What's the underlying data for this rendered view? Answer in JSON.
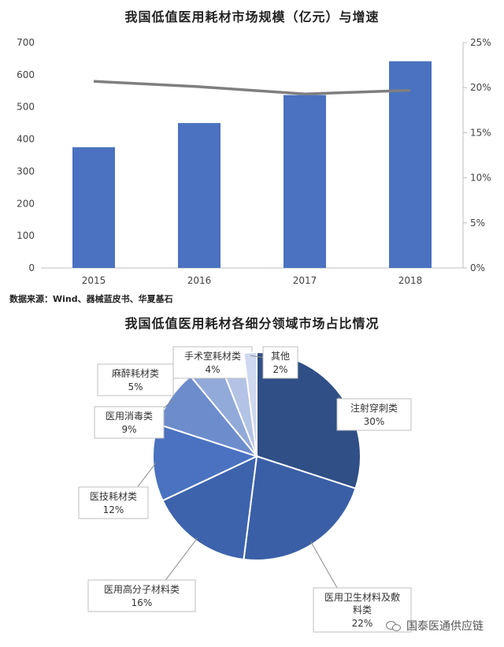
{
  "charts": {
    "bar_title": "我国低值医用耗材市场规模（亿元）与增速",
    "source_note": "数据来源：Wind、器械蓝皮书、华夏基石",
    "pie_title": "我国低值医用耗材各细分领域市场占比情况"
  },
  "chart_data": [
    {
      "type": "bar",
      "categories": [
        "2015",
        "2016",
        "2017",
        "2018"
      ],
      "series": [
        {
          "type": "bar",
          "values": [
            375,
            450,
            537,
            642
          ],
          "axis": "left",
          "color": "#4a72c0"
        },
        {
          "type": "line",
          "values": [
            20.7,
            20.1,
            19.3,
            19.7
          ],
          "axis": "right",
          "color": "#7f7f7f"
        }
      ],
      "ylim": [
        0,
        700
      ],
      "yticks": [
        "0",
        "100",
        "200",
        "300",
        "400",
        "500",
        "600",
        "700"
      ],
      "y2lim": [
        0,
        25
      ],
      "y2ticks": [
        "0%",
        "5%",
        "10%",
        "15%",
        "20%",
        "25%"
      ],
      "grid": false
    },
    {
      "type": "pie",
      "slices": [
        {
          "label": "注射穿刺类",
          "pct_label": "30%",
          "value": 30,
          "color": "#2f4f86"
        },
        {
          "label": "医用卫生材料及敷料类",
          "pct_label": "22%",
          "value": 22,
          "color": "#3a5fa6"
        },
        {
          "label": "医用高分子材料类",
          "pct_label": "16%",
          "value": 16,
          "color": "#3d63ad"
        },
        {
          "label": "医技耗材类",
          "pct_label": "12%",
          "value": 12,
          "color": "#4a72c0"
        },
        {
          "label": "医用消毒类",
          "pct_label": "9%",
          "value": 9,
          "color": "#6d8ccc"
        },
        {
          "label": "麻醉耗材类",
          "pct_label": "5%",
          "value": 5,
          "color": "#92aad9"
        },
        {
          "label": "手术室耗材类",
          "pct_label": "4%",
          "value": 4,
          "color": "#b3c3e5"
        },
        {
          "label": "其他",
          "pct_label": "2%",
          "value": 2,
          "color": "#cfd9ef"
        }
      ]
    }
  ],
  "watermark": {
    "text": "国泰医通供应链",
    "icon": "wechat-icon"
  }
}
